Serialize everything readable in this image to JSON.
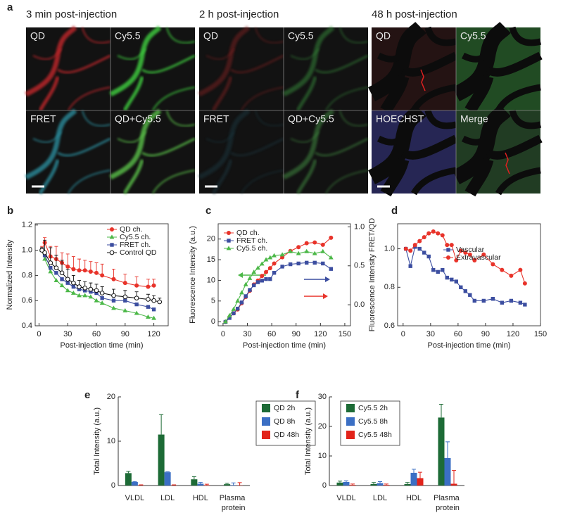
{
  "panel_a": {
    "label": "a",
    "images": [
      {
        "title": "3 min post-injection",
        "cells": [
          "QD",
          "Cy5.5",
          "FRET",
          "QD+Cy5.5"
        ]
      },
      {
        "title": "2 h post-injection",
        "cells": [
          "QD",
          "Cy5.5",
          "FRET",
          "QD+Cy5.5"
        ]
      },
      {
        "title": "48 h post-injection",
        "cells": [
          "QD",
          "Cy5.5",
          "HOECHST",
          "Merge"
        ]
      }
    ]
  },
  "chart_data": [
    {
      "type": "line",
      "label": "b",
      "xlabel": "Post-injection time (min)",
      "ylabel": "Normalized Intensity",
      "xlim": [
        -4,
        135
      ],
      "xticks": [
        0,
        30,
        60,
        90,
        120
      ],
      "ylim": [
        0.4,
        1.21
      ],
      "yticks": [
        0.4,
        0.6,
        0.8,
        {
          "value": 1,
          "label": "1.0"
        },
        1.2
      ],
      "legend": "upper right",
      "series": [
        {
          "name": "QD ch.",
          "color": "#e8332a",
          "marker": "circle",
          "x": [
            3,
            6,
            12,
            18,
            24,
            30,
            36,
            42,
            48,
            54,
            60,
            66,
            78,
            90,
            102,
            114,
            120
          ],
          "values": [
            1.0,
            1.06,
            0.95,
            0.93,
            0.9,
            0.87,
            0.85,
            0.84,
            0.84,
            0.83,
            0.82,
            0.8,
            0.77,
            0.74,
            0.72,
            0.71,
            0.72
          ],
          "errors": [
            0.03,
            0.04,
            0.08,
            0.1,
            0.08,
            0.1,
            0.1,
            0.09,
            0.08,
            0.08,
            0.08,
            0.09,
            0.08,
            0.07,
            0.07,
            0.06,
            0.05
          ]
        },
        {
          "name": "Cy5.5 ch.",
          "color": "#4cb848",
          "marker": "triangle",
          "x": [
            3,
            6,
            12,
            18,
            24,
            30,
            36,
            42,
            48,
            54,
            60,
            66,
            78,
            90,
            102,
            114,
            120
          ],
          "values": [
            1.0,
            0.93,
            0.83,
            0.76,
            0.72,
            0.68,
            0.66,
            0.64,
            0.64,
            0.63,
            0.6,
            0.58,
            0.54,
            0.52,
            0.5,
            0.47,
            0.46
          ]
        },
        {
          "name": "FRET ch.",
          "color": "#3c4ea0",
          "marker": "square",
          "x": [
            3,
            6,
            12,
            18,
            24,
            30,
            36,
            42,
            48,
            54,
            60,
            66,
            78,
            90,
            102,
            114,
            120
          ],
          "values": [
            1.0,
            0.96,
            0.86,
            0.82,
            0.77,
            0.74,
            0.71,
            0.69,
            0.68,
            0.67,
            0.66,
            0.62,
            0.6,
            0.6,
            0.57,
            0.55,
            0.53
          ]
        },
        {
          "name": "Control QD",
          "color": "#111111",
          "marker": "open-circle",
          "x": [
            3,
            6,
            12,
            18,
            24,
            30,
            36,
            42,
            48,
            54,
            60,
            66,
            78,
            90,
            102,
            114,
            120,
            126
          ],
          "values": [
            1.0,
            0.98,
            0.9,
            0.86,
            0.82,
            0.77,
            0.74,
            0.71,
            0.7,
            0.69,
            0.68,
            0.66,
            0.64,
            0.63,
            0.62,
            0.61,
            0.6,
            0.59
          ],
          "errors": [
            0.02,
            0.1,
            0.12,
            0.1,
            0.1,
            0.08,
            0.06,
            0.05,
            0.05,
            0.05,
            0.05,
            0.05,
            0.05,
            0.05,
            0.05,
            0.04,
            0.04,
            0.03
          ]
        }
      ]
    },
    {
      "type": "line",
      "label": "c",
      "xlabel": "Post-injection time (min)",
      "ylabel": "Fluorescence Intensity (a.u.)",
      "xlim": [
        -6,
        157
      ],
      "xticks": [
        0,
        30,
        60,
        90,
        120,
        150
      ],
      "ylim": [
        -1,
        23.7
      ],
      "yticks": [
        0,
        5,
        10,
        15,
        20
      ],
      "y2lim": [
        -0.27,
        1.04
      ],
      "y2ticks": [
        {
          "value": 0,
          "label": "0.0"
        },
        0.5,
        {
          "value": 1,
          "label": "1.0"
        }
      ],
      "legend": "upper left",
      "series": [
        {
          "name": "QD ch.",
          "color": "#e8332a",
          "marker": "circle",
          "axis": "y2",
          "x": [
            3,
            8,
            13,
            18,
            23,
            28,
            33,
            38,
            43,
            48,
            53,
            58,
            63,
            73,
            83,
            93,
            103,
            113,
            123,
            133
          ],
          "values": [
            -0.22,
            -0.16,
            -0.11,
            -0.06,
            0.02,
            0.1,
            0.18,
            0.26,
            0.31,
            0.37,
            0.42,
            0.47,
            0.53,
            0.61,
            0.69,
            0.74,
            0.79,
            0.8,
            0.77,
            0.86
          ]
        },
        {
          "name": "FRET ch.",
          "color": "#3c4ea0",
          "marker": "square",
          "axis": "y2",
          "x": [
            3,
            8,
            13,
            18,
            23,
            28,
            33,
            38,
            43,
            48,
            53,
            58,
            63,
            73,
            83,
            93,
            103,
            113,
            123,
            133
          ],
          "values": [
            -0.22,
            -0.17,
            -0.11,
            -0.05,
            0.03,
            0.11,
            0.19,
            0.25,
            0.29,
            0.31,
            0.33,
            0.33,
            0.41,
            0.49,
            0.52,
            0.53,
            0.54,
            0.54,
            0.53,
            0.46
          ]
        },
        {
          "name": "Cy5.5 ch.",
          "color": "#4cb848",
          "marker": "triangle",
          "x": [
            3,
            8,
            13,
            18,
            23,
            28,
            33,
            38,
            43,
            48,
            53,
            58,
            63,
            73,
            83,
            93,
            103,
            113,
            123,
            133
          ],
          "values": [
            0,
            1.5,
            3,
            5,
            7,
            9,
            10.5,
            12,
            13,
            14,
            15,
            15.5,
            16,
            16.2,
            17,
            16.5,
            17,
            16.5,
            17,
            15.5
          ]
        }
      ]
    },
    {
      "type": "line",
      "label": "d",
      "xlabel": "Post-injection time (min)",
      "ylabel": "Fluorescence Intensity FRET/QD",
      "xlim": [
        -6,
        150
      ],
      "xticks": [
        0,
        30,
        60,
        90,
        120,
        150
      ],
      "ylim": [
        0.6,
        1.13
      ],
      "yticks": [
        0.6,
        0.8,
        {
          "value": 1,
          "label": "1.0"
        }
      ],
      "legend": "center right",
      "series": [
        {
          "name": "Vascular",
          "color": "#3c4ea0",
          "marker": "square",
          "x": [
            3,
            8,
            13,
            18,
            23,
            28,
            33,
            38,
            43,
            48,
            53,
            58,
            63,
            68,
            73,
            78,
            88,
            98,
            108,
            118,
            128,
            133
          ],
          "values": [
            1.0,
            0.91,
            1.01,
            1.0,
            0.98,
            0.96,
            0.89,
            0.88,
            0.89,
            0.85,
            0.84,
            0.83,
            0.8,
            0.78,
            0.76,
            0.73,
            0.73,
            0.74,
            0.72,
            0.73,
            0.72,
            0.71
          ]
        },
        {
          "name": "Extravascular",
          "color": "#e8332a",
          "marker": "circle",
          "x": [
            3,
            8,
            13,
            18,
            23,
            28,
            33,
            38,
            43,
            48,
            53,
            58,
            63,
            68,
            73,
            78,
            88,
            98,
            108,
            118,
            128,
            133
          ],
          "values": [
            1.0,
            0.99,
            1.02,
            1.04,
            1.06,
            1.08,
            1.09,
            1.08,
            1.07,
            1.02,
            1.02,
            0.94,
            0.99,
            0.98,
            0.97,
            0.94,
            0.97,
            0.92,
            0.89,
            0.86,
            0.89,
            0.82
          ]
        }
      ]
    },
    {
      "type": "bar",
      "label": "e",
      "ylabel": "Total Intensity (a.u.)",
      "categories": [
        "VLDL",
        "LDL",
        "HDL",
        "Plasma protein"
      ],
      "ylim": [
        0,
        20
      ],
      "yticks": [
        0,
        10,
        20
      ],
      "legend": "outside right",
      "series": [
        {
          "name": "QD 2h",
          "color": "#1d6b36",
          "values": [
            2.8,
            11.5,
            1.4,
            0.3
          ],
          "errors": [
            0.4,
            4.5,
            0.6,
            0.2
          ]
        },
        {
          "name": "QD 8h",
          "color": "#3b6fc4",
          "values": [
            0.8,
            3.0,
            0.4,
            0.1
          ],
          "errors": [
            0.1,
            0.1,
            0.3,
            0.5
          ]
        },
        {
          "name": "QD 48h",
          "color": "#e2231a",
          "values": [
            0.05,
            0.05,
            0.1,
            0.05
          ],
          "errors": [
            0.1,
            0.1,
            0.2,
            0.6
          ]
        }
      ]
    },
    {
      "type": "bar",
      "label": "f",
      "ylabel": "Total Intensity (a.u.)",
      "categories": [
        "VLDL",
        "LDL",
        "HDL",
        "Plasma protein"
      ],
      "ylim": [
        0,
        30
      ],
      "yticks": [
        0,
        10,
        20,
        30
      ],
      "legend": "upper left",
      "series": [
        {
          "name": "Cy5.5 2h",
          "color": "#1d6b36",
          "values": [
            1.0,
            0.5,
            0.5,
            23
          ],
          "errors": [
            0.5,
            0.5,
            0.5,
            4.5
          ]
        },
        {
          "name": "Cy5.5 8h",
          "color": "#3b6fc4",
          "values": [
            1.2,
            0.8,
            4.3,
            9.3
          ],
          "errors": [
            0.4,
            0.5,
            1.2,
            5.5
          ]
        },
        {
          "name": "Cy5.5 48h",
          "color": "#e2231a",
          "values": [
            0.2,
            0.2,
            2.5,
            0.6
          ],
          "errors": [
            0.3,
            0.3,
            2.0,
            4.5
          ]
        }
      ]
    }
  ]
}
